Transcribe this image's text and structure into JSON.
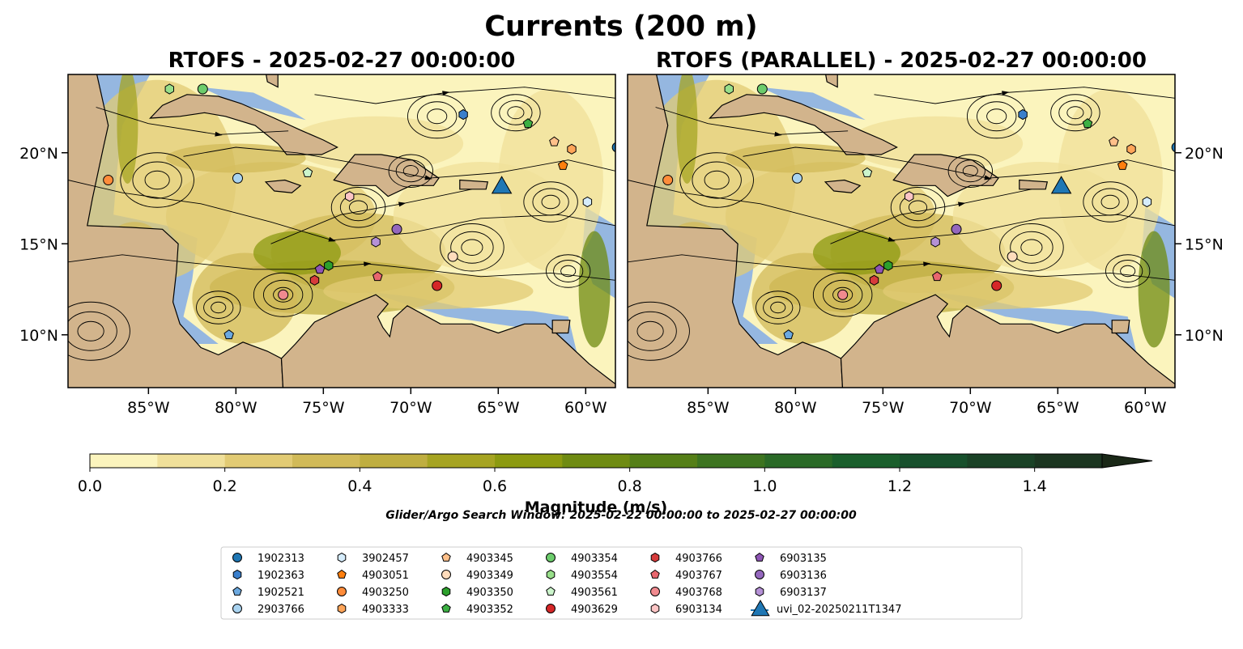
{
  "figure": {
    "title": "Currents (200 m)",
    "search_window": "Glider/Argo Search Window: 2025-02-22 00:00:00 to 2025-02-27 00:00:00"
  },
  "colors": {
    "ocean": "#95b7e0",
    "land": "#d2b48c",
    "cmap": [
      "#fbf4bd",
      "#f0e09a",
      "#e2cb74",
      "#d1ba58",
      "#bfae40",
      "#a6a422",
      "#8c9a10",
      "#6f8b12",
      "#557f17",
      "#3d7420",
      "#2a6a27",
      "#1a5f2c",
      "#17502c",
      "#1a4226",
      "#1b3520",
      "#1a2817"
    ]
  },
  "panels": [
    {
      "title": "RTOFS - 2025-02-27 00:00:00"
    },
    {
      "title": "RTOFS (PARALLEL) - 2025-02-27 00:00:00"
    }
  ],
  "axes": {
    "lon_ticks": [
      -85,
      -80,
      -75,
      -70,
      -65,
      -60
    ],
    "lon_labels": [
      "85°W",
      "80°W",
      "75°W",
      "70°W",
      "65°W",
      "60°W"
    ],
    "lat_ticks": [
      10,
      15,
      20
    ],
    "lat_labels": [
      "10°N",
      "15°N",
      "20°N"
    ],
    "xlim": [
      -89.6,
      -58.3
    ],
    "ylim": [
      7.1,
      24.3
    ]
  },
  "colorbar": {
    "label": "Magnitude (m/s)",
    "range": [
      0,
      1.5
    ],
    "step": 0.1,
    "extend": "max",
    "ticks": [
      0.0,
      0.2,
      0.4,
      0.6,
      0.8,
      1.0,
      1.2,
      1.4
    ],
    "tick_labels": [
      "0.0",
      "0.2",
      "0.4",
      "0.6",
      "0.8",
      "1.0",
      "1.2",
      "1.4"
    ]
  },
  "chart_data": {
    "type": "scatter",
    "title": "Currents (200 m)",
    "series": [
      {
        "name": "1902313",
        "marker": "circle",
        "color": "#1f77b4",
        "lon": -58.2,
        "lat": 20.3
      },
      {
        "name": "1902363",
        "marker": "hexagon",
        "color": "#3a7fcc",
        "lon": -67.0,
        "lat": 22.1
      },
      {
        "name": "1902521",
        "marker": "pentagon",
        "color": "#6ca9e0",
        "lon": -80.4,
        "lat": 10.0
      },
      {
        "name": "2903766",
        "marker": "circle",
        "color": "#a9d3f0",
        "lon": -79.9,
        "lat": 18.6
      },
      {
        "name": "3902457",
        "marker": "hexagon",
        "color": "#d5ecfb",
        "lon": -59.9,
        "lat": 17.3
      },
      {
        "name": "4903051",
        "marker": "pentagon",
        "color": "#ff7f0e",
        "lon": -61.3,
        "lat": 19.3
      },
      {
        "name": "4903250",
        "marker": "circle",
        "color": "#ff8c3a",
        "lon": -87.3,
        "lat": 18.5
      },
      {
        "name": "4903333",
        "marker": "hexagon",
        "color": "#ffa559",
        "lon": -60.8,
        "lat": 20.2
      },
      {
        "name": "4903345",
        "marker": "pentagon",
        "color": "#ffc08a",
        "lon": -61.8,
        "lat": 20.6
      },
      {
        "name": "4903349",
        "marker": "circle",
        "color": "#ffdcbc",
        "lon": -67.6,
        "lat": 14.3
      },
      {
        "name": "4903350",
        "marker": "hexagon",
        "color": "#2ca02c",
        "lon": -74.7,
        "lat": 13.8
      },
      {
        "name": "4903352",
        "marker": "pentagon",
        "color": "#3cb043",
        "lon": -63.3,
        "lat": 21.6
      },
      {
        "name": "4903354",
        "marker": "circle",
        "color": "#6ccc6c",
        "lon": -81.9,
        "lat": 23.5
      },
      {
        "name": "4903554",
        "marker": "hexagon",
        "color": "#98df8a",
        "lon": -83.8,
        "lat": 23.5
      },
      {
        "name": "4903561",
        "marker": "pentagon",
        "color": "#ccf5cc",
        "lon": -75.9,
        "lat": 18.9
      },
      {
        "name": "4903629",
        "marker": "circle",
        "color": "#d62728",
        "lon": -68.5,
        "lat": 12.7
      },
      {
        "name": "4903766",
        "marker": "hexagon",
        "color": "#d63b3b",
        "lon": -75.5,
        "lat": 13.0
      },
      {
        "name": "4903767",
        "marker": "pentagon",
        "color": "#e8666e",
        "lon": -71.9,
        "lat": 13.2
      },
      {
        "name": "4903768",
        "marker": "circle",
        "color": "#f08a8f",
        "lon": -77.3,
        "lat": 12.2
      },
      {
        "name": "6903134",
        "marker": "hexagon",
        "color": "#fcc5c5",
        "lon": -73.5,
        "lat": 17.6
      },
      {
        "name": "6903135",
        "marker": "pentagon",
        "color": "#8e55b5",
        "lon": -75.2,
        "lat": 13.6
      },
      {
        "name": "6903136",
        "marker": "circle",
        "color": "#9467bd",
        "lon": -70.8,
        "lat": 15.8
      },
      {
        "name": "6903137",
        "marker": "hexagon",
        "color": "#b591d6",
        "lon": -72.0,
        "lat": 15.1
      },
      {
        "name": "uvi_02-20250211T1347",
        "marker": "triangle",
        "color": "#1f77b4",
        "lon": -64.8,
        "lat": 18.2
      }
    ],
    "xlabel": "",
    "ylabel": ""
  },
  "legend": {
    "placement": "bottom-center",
    "columns": 7
  }
}
